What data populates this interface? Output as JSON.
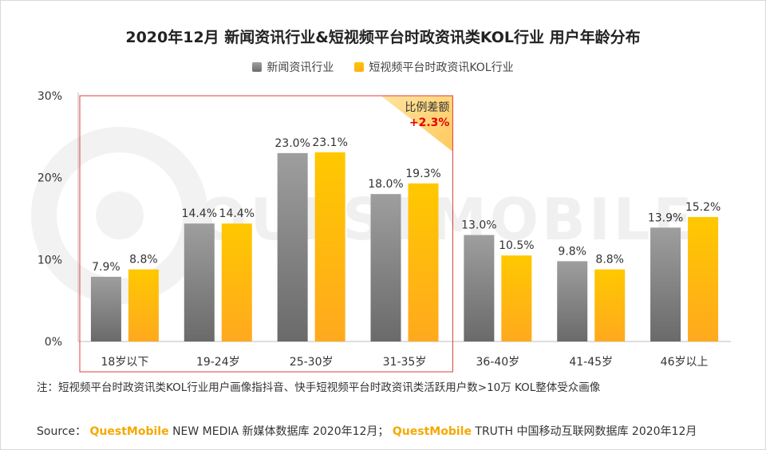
{
  "chart_data": {
    "type": "bar",
    "title": "2020年12月 新闻资讯行业&短视频平台时政资讯类KOL行业 用户年龄分布",
    "categories": [
      "18岁以下",
      "19-24岁",
      "25-30岁",
      "31-35岁",
      "36-40岁",
      "41-45岁",
      "46岁以上"
    ],
    "series": [
      {
        "name": "新闻资讯行业",
        "values": [
          7.9,
          14.4,
          23.0,
          18.0,
          13.0,
          9.8,
          13.9
        ],
        "color": "#8c8c8c"
      },
      {
        "name": "短视频平台时政资讯KOL行业",
        "values": [
          8.8,
          14.4,
          23.1,
          19.3,
          10.5,
          8.8,
          15.2
        ],
        "color": "#ffba00"
      }
    ],
    "ylim": [
      0,
      30
    ],
    "yticks": [
      "0%",
      "10%",
      "20%",
      "30%"
    ],
    "value_suffix": "%",
    "highlight": {
      "categories": [
        "18岁以下",
        "19-24岁",
        "25-30岁",
        "31-35岁"
      ],
      "label": "比例差额",
      "value": "+2.3%"
    },
    "watermark": "QUESTMOBILE"
  },
  "note": "注：短视频平台时政资讯类KOL行业用户画像指抖音、快手短视频平台时政资讯类活跃用户数>10万 KOL整体受众画像",
  "source": {
    "prefix": "Source：",
    "brand1": "QuestMobile",
    "text1": "NEW MEDIA 新媒体数据库 2020年12月；",
    "brand2": "QuestMobile",
    "text2": "TRUTH 中国移动互联网数据库 2020年12月"
  }
}
